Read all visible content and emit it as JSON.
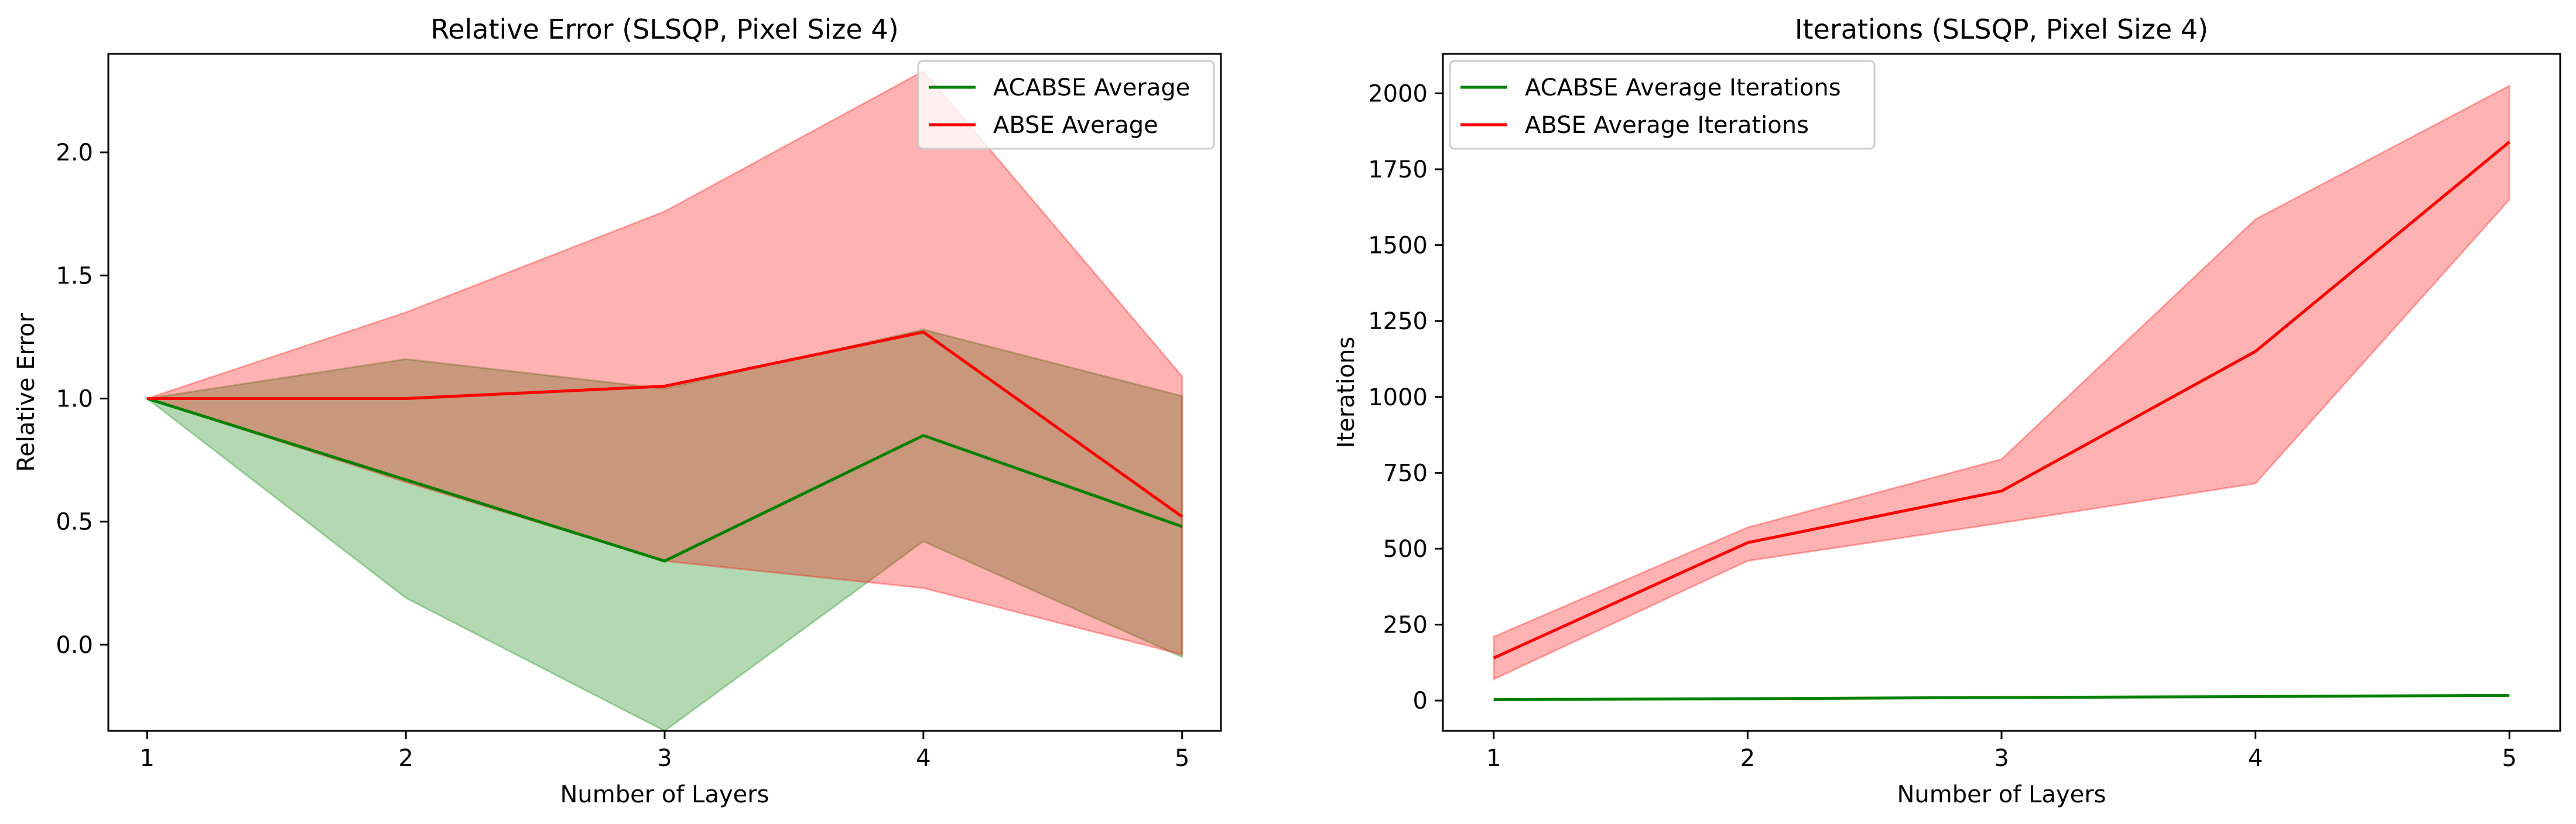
{
  "chart_data": [
    {
      "type": "line",
      "title": "Relative Error (SLSQP, Pixel Size 4)",
      "xlabel": "Number of Layers",
      "ylabel": "Relative Error",
      "x": [
        1,
        2,
        3,
        4,
        5
      ],
      "xlim": [
        0.85,
        5.15
      ],
      "ylim": [
        -0.35,
        2.4
      ],
      "xticks": [
        1,
        2,
        3,
        4,
        5
      ],
      "yticks": [
        0.0,
        0.5,
        1.0,
        1.5,
        2.0
      ],
      "ytick_labels": [
        "0.0",
        "0.5",
        "1.0",
        "1.5",
        "2.0"
      ],
      "grid": false,
      "legend_position": "upper right",
      "series": [
        {
          "name": "ACABSE Average",
          "color": "#008000",
          "values": [
            1.0,
            0.67,
            0.34,
            0.85,
            0.48
          ],
          "band_upper": [
            1.0,
            1.16,
            1.04,
            1.28,
            1.01
          ],
          "band_lower": [
            1.0,
            0.19,
            -0.35,
            0.42,
            -0.05
          ]
        },
        {
          "name": "ABSE Average",
          "color": "#ff0000",
          "values": [
            1.0,
            1.0,
            1.05,
            1.27,
            0.52
          ],
          "band_upper": [
            1.0,
            1.35,
            1.76,
            2.33,
            1.09
          ],
          "band_lower": [
            1.0,
            0.66,
            0.34,
            0.23,
            -0.04
          ]
        }
      ]
    },
    {
      "type": "line",
      "title": "Iterations (SLSQP, Pixel Size 4)",
      "xlabel": "Number of Layers",
      "ylabel": "Iterations",
      "x": [
        1,
        2,
        3,
        4,
        5
      ],
      "xlim": [
        0.8,
        5.2
      ],
      "ylim": [
        -100,
        2130
      ],
      "xticks": [
        1,
        2,
        3,
        4,
        5
      ],
      "yticks": [
        0,
        250,
        500,
        750,
        1000,
        1250,
        1500,
        1750,
        2000
      ],
      "ytick_labels": [
        "0",
        "250",
        "500",
        "750",
        "1000",
        "1250",
        "1500",
        "1750",
        "2000"
      ],
      "grid": false,
      "legend_position": "upper left",
      "series": [
        {
          "name": "ACABSE Average Iterations",
          "color": "#008000",
          "values": [
            3,
            6,
            10,
            13,
            17
          ]
        },
        {
          "name": "ABSE Average Iterations",
          "color": "#ff0000",
          "values": [
            140,
            520,
            690,
            1150,
            1840
          ],
          "band_upper": [
            210,
            570,
            795,
            1585,
            2025
          ],
          "band_lower": [
            70,
            460,
            585,
            715,
            1650
          ]
        }
      ]
    }
  ]
}
